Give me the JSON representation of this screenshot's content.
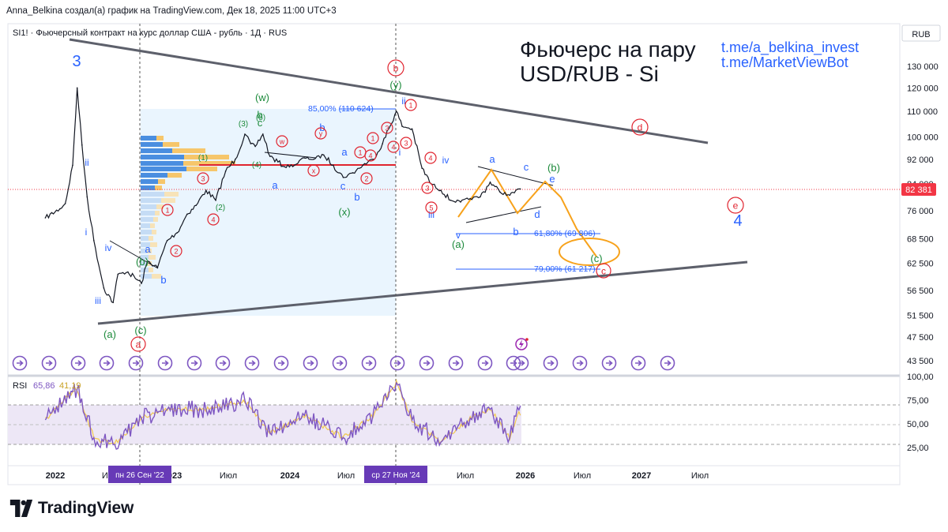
{
  "header": {
    "attribution": "Anna_Belkina создал(а) график на TradingView.com, Дек 18, 2025 11:00 UTC+3"
  },
  "main_panel": {
    "symbol_line": "SI1! · Фьючерсный контракт на курс доллар США - рубль · 1Д · RUS",
    "title_line1": "Фьючерс на пару",
    "title_line2": "USD/RUB - Si",
    "link1": "t.me/a_belkina_invest",
    "link2": "t.me/MarketViewBot",
    "currency": "RUB",
    "last_price_label": "82 381",
    "fib_top": "85,00% (110 624)",
    "fib_mid": "61,80% (69 806)",
    "fib_low": "79,00% (61 217)"
  },
  "rsi_panel": {
    "label": "RSI",
    "value1": "65,86",
    "value2": "41,19",
    "ticks": [
      "100,00",
      "75,00",
      "50,00",
      "25,00"
    ]
  },
  "x_axis": {
    "labels": [
      "2022",
      "Июл",
      "2023",
      "Июл",
      "2024",
      "Июл",
      "Июл",
      "2026",
      "Июл",
      "2027",
      "Июл"
    ],
    "highlight1": "пн 26 Сен '22",
    "highlight2": "ср 27 Ноя '24"
  },
  "wave_labels": {
    "big": [
      "3",
      "4"
    ],
    "roman": [
      "ii",
      "i",
      "iv",
      "iii",
      "iii",
      "i",
      "ii",
      "iv",
      "v"
    ],
    "letters": [
      "a",
      "b",
      "b",
      "a",
      "a",
      "b",
      "c",
      "a",
      "b",
      "c",
      "d",
      "e",
      "b",
      "c",
      "(w)",
      "(y)",
      "(x)",
      "(a)",
      "(b)",
      "(c)",
      "(a)",
      "(b)",
      "(c)"
    ],
    "circled_red": [
      "a",
      "b",
      "c",
      "d",
      "e",
      "w",
      "x",
      "y",
      "1",
      "2",
      "3",
      "4",
      "5"
    ],
    "circled_num": [
      "(1)",
      "(2)",
      "(3)",
      "(4)",
      "(5)"
    ]
  },
  "brand": {
    "logo_text": "TradingView"
  },
  "colors": {
    "price_line": "#131722",
    "trendline": "#5d606b",
    "wave_blue": "#2962ff",
    "wave_green": "#1b8a3a",
    "wave_red": "#e0242f",
    "projection": "#f7a21b",
    "rsi_line": "#7e57c2",
    "rsi_ma": "#f2c94c",
    "rsi_band": "#ede7f6",
    "highlight": "#673ab7",
    "box_blue": "#e3f2fd",
    "price_tag": "#f23645"
  },
  "chart_data": {
    "type": "line",
    "title": "Фьючерс на пару USD/RUB - Si",
    "xlabel": "",
    "ylabel": "",
    "x_ticks": [
      "2022",
      "Июл",
      "2023",
      "Июл",
      "2024",
      "Июл",
      "Июл",
      "2026",
      "Июл",
      "2027",
      "Июл"
    ],
    "y_ticks": [
      130000,
      120000,
      110000,
      100000,
      92000,
      84000,
      76000,
      68500,
      62500,
      56500,
      51500,
      47500,
      43500
    ],
    "ylim": [
      40500,
      137000
    ],
    "scale": "log",
    "last_value": 82381,
    "series": [
      {
        "values": [
          [
            "2021-12-01",
            74000
          ],
          [
            "2022-01-15",
            76500
          ],
          [
            "2022-02-01",
            78000
          ],
          [
            "2022-02-24",
            90000
          ],
          [
            "2022-03-10",
            120000
          ],
          [
            "2022-03-25",
            97000
          ],
          [
            "2022-04-10",
            80000
          ],
          [
            "2022-05-01",
            68000
          ],
          [
            "2022-06-01",
            57000
          ],
          [
            "2022-06-30",
            54000
          ],
          [
            "2022-07-15",
            60000
          ],
          [
            "2022-08-15",
            60500
          ],
          [
            "2022-09-26",
            58000
          ],
          [
            "2022-10-15",
            63000
          ],
          [
            "2022-11-15",
            61500
          ],
          [
            "2022-12-15",
            68000
          ],
          [
            "2023-01-15",
            70000
          ],
          [
            "2023-02-15",
            75000
          ],
          [
            "2023-03-15",
            77500
          ],
          [
            "2023-04-15",
            82000
          ],
          [
            "2023-05-15",
            79000
          ],
          [
            "2023-06-15",
            88000
          ],
          [
            "2023-07-15",
            92000
          ],
          [
            "2023-08-14",
            101000
          ],
          [
            "2023-09-01",
            97500
          ],
          [
            "2023-09-15",
            96500
          ],
          [
            "2023-10-09",
            101000
          ],
          [
            "2023-10-31",
            93000
          ],
          [
            "2023-12-15",
            89500
          ],
          [
            "2024-01-15",
            90000
          ],
          [
            "2024-02-15",
            92500
          ],
          [
            "2024-03-15",
            92000
          ],
          [
            "2024-04-15",
            93500
          ],
          [
            "2024-05-15",
            90000
          ],
          [
            "2024-06-15",
            86000
          ],
          [
            "2024-07-15",
            87500
          ],
          [
            "2024-08-15",
            90000
          ],
          [
            "2024-09-15",
            92000
          ],
          [
            "2024-10-15",
            97500
          ],
          [
            "2024-11-27",
            110000
          ],
          [
            "2024-12-15",
            104000
          ],
          [
            "2025-01-15",
            103000
          ],
          [
            "2025-02-15",
            89000
          ],
          [
            "2025-03-15",
            84000
          ],
          [
            "2025-04-15",
            82000
          ],
          [
            "2025-05-15",
            79000
          ],
          [
            "2025-06-15",
            78500
          ],
          [
            "2025-07-15",
            79500
          ],
          [
            "2025-08-15",
            80000
          ],
          [
            "2025-09-15",
            84500
          ],
          [
            "2025-10-15",
            81500
          ],
          [
            "2025-11-15",
            80500
          ],
          [
            "2025-12-18",
            82381
          ]
        ]
      }
    ],
    "rsi": {
      "ylim": [
        0,
        100
      ],
      "values": [
        [
          "2021-12-01",
          50
        ],
        [
          "2022-02-24",
          82
        ],
        [
          "2022-03-10",
          85
        ],
        [
          "2022-05-01",
          30
        ],
        [
          "2022-06-30",
          22
        ],
        [
          "2022-09-26",
          52
        ],
        [
          "2022-12-15",
          62
        ],
        [
          "2023-04-15",
          62
        ],
        [
          "2023-08-14",
          72
        ],
        [
          "2023-10-31",
          35
        ],
        [
          "2024-02-15",
          55
        ],
        [
          "2024-06-15",
          30
        ],
        [
          "2024-09-15",
          55
        ],
        [
          "2024-11-27",
          92
        ],
        [
          "2025-01-15",
          50
        ],
        [
          "2025-04-15",
          25
        ],
        [
          "2025-07-15",
          52
        ],
        [
          "2025-09-15",
          62
        ],
        [
          "2025-11-15",
          30
        ],
        [
          "2025-12-18",
          65.86
        ]
      ]
    }
  }
}
